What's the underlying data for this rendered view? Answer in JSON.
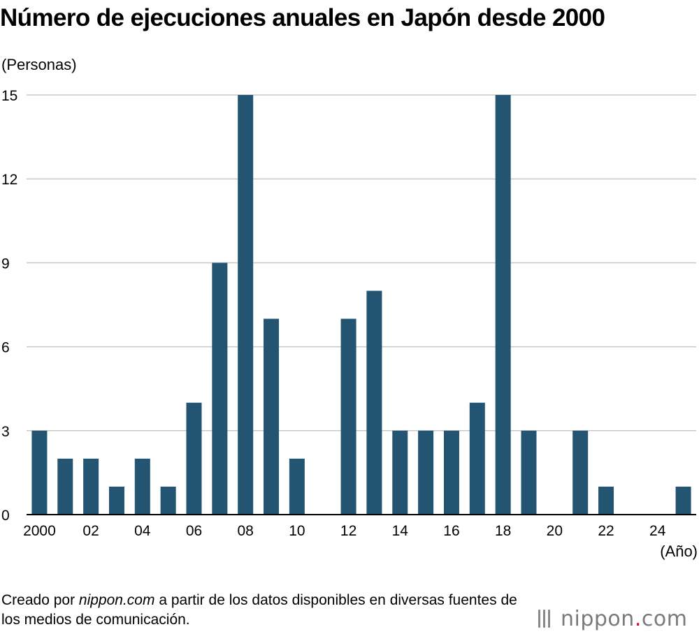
{
  "title": "Número de ejecuciones anuales en Japón desde 2000",
  "y_unit": "(Personas)",
  "x_unit": "(Año)",
  "source": {
    "prefix": "Creado por ",
    "site": "nippon.com",
    "suffix": " a partir de los datos disponibles en diversas fuentes de los medios de comunicación."
  },
  "logo": {
    "name": "nippon",
    "dot": ".",
    "tld": "com"
  },
  "colors": {
    "bar": "#235573",
    "grid": "#c8c8c8",
    "axis": "#000000",
    "logo_dot": "#d0102b"
  },
  "chart_data": {
    "type": "bar",
    "title": "Número de ejecuciones anuales en Japón desde 2000",
    "xlabel": "(Año)",
    "ylabel": "(Personas)",
    "ylim": [
      0,
      15
    ],
    "yticks": [
      0,
      3,
      6,
      9,
      12,
      15
    ],
    "grid": true,
    "categories": [
      "2000",
      "2001",
      "2002",
      "2003",
      "2004",
      "2005",
      "2006",
      "2007",
      "2008",
      "2009",
      "2010",
      "2011",
      "2012",
      "2013",
      "2014",
      "2015",
      "2016",
      "2017",
      "2018",
      "2019",
      "2020",
      "2021",
      "2022",
      "2023",
      "2024",
      "2025"
    ],
    "tick_labels": [
      "2000",
      "",
      "02",
      "",
      "04",
      "",
      "06",
      "",
      "08",
      "",
      "10",
      "",
      "12",
      "",
      "14",
      "",
      "16",
      "",
      "18",
      "",
      "20",
      "",
      "22",
      "",
      "24",
      ""
    ],
    "values": [
      3,
      2,
      2,
      1,
      2,
      1,
      4,
      9,
      15,
      7,
      2,
      0,
      7,
      8,
      3,
      3,
      3,
      4,
      15,
      3,
      0,
      3,
      1,
      0,
      0,
      1
    ]
  }
}
